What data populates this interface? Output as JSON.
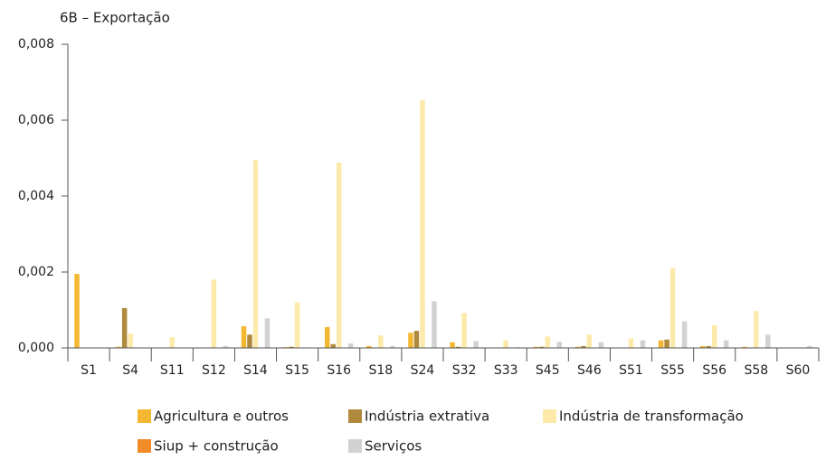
{
  "chart_data": {
    "type": "bar",
    "title": "6B – Exportação",
    "categories": [
      "S1",
      "S4",
      "S11",
      "S12",
      "S14",
      "S15",
      "S16",
      "S18",
      "S24",
      "S32",
      "S33",
      "S45",
      "S46",
      "S51",
      "S55",
      "S56",
      "S58",
      "S60"
    ],
    "series": [
      {
        "name": "Agricultura e outros",
        "color": "#f4b731",
        "values": [
          0.00195,
          3e-05,
          0,
          0,
          0.00057,
          2e-05,
          0.00055,
          5e-05,
          0.0004,
          0.00015,
          0,
          3e-05,
          3e-05,
          0,
          0.0002,
          5e-05,
          3e-05,
          0
        ]
      },
      {
        "name": "Indústria extrativa",
        "color": "#b08a3c",
        "values": [
          0,
          0.00105,
          0,
          0,
          0.00035,
          3e-05,
          0.0001,
          0,
          0.00045,
          3e-05,
          0,
          3e-05,
          5e-05,
          0,
          0.00022,
          5e-05,
          0,
          0
        ]
      },
      {
        "name": "Indústria de transformação",
        "color": "#fdeaab",
        "values": [
          0,
          0.00038,
          0.00028,
          0.0018,
          0.00495,
          0.0012,
          0.00488,
          0.00033,
          0.00653,
          0.00092,
          0.0002,
          0.0003,
          0.00035,
          0.00025,
          0.0021,
          0.0006,
          0.00097,
          0
        ]
      },
      {
        "name": "Siup + construção",
        "color": "#f28c28",
        "values": [
          0,
          0,
          0,
          0,
          0,
          0,
          0,
          0,
          0,
          0,
          0,
          0,
          0,
          0,
          0,
          0,
          0,
          0
        ]
      },
      {
        "name": "Serviços",
        "color": "#d2d2d2",
        "values": [
          0,
          0,
          0,
          5e-05,
          0.00078,
          0,
          0.00012,
          5e-05,
          0.00123,
          0.00018,
          2e-05,
          0.00016,
          0.00015,
          0.0002,
          0.0007,
          0.0002,
          0.00035,
          5e-05
        ]
      }
    ],
    "ylim": [
      0,
      0.008
    ],
    "yticks": [
      {
        "value": 0,
        "label": "0,000"
      },
      {
        "value": 0.002,
        "label": "0,002"
      },
      {
        "value": 0.004,
        "label": "0,004"
      },
      {
        "value": 0.006,
        "label": "0,006"
      },
      {
        "value": 0.008,
        "label": "0,008"
      }
    ],
    "grid": false
  }
}
